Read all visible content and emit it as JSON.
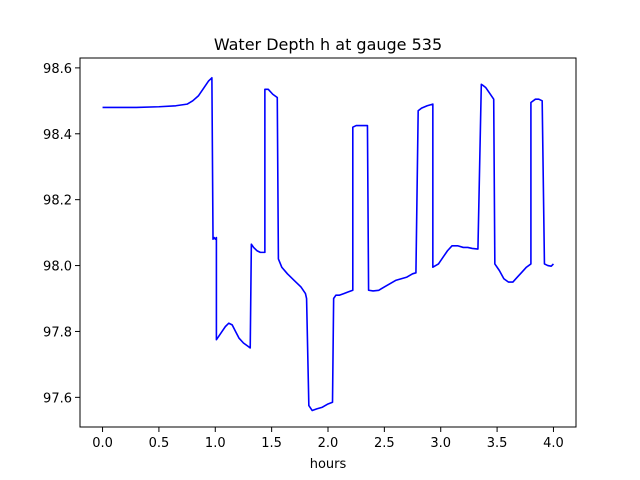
{
  "chart_data": {
    "type": "line",
    "title": "Water Depth h at gauge 535",
    "xlabel": "hours",
    "ylabel": "",
    "xlim": [
      -0.2,
      4.2
    ],
    "ylim": [
      97.51,
      98.63
    ],
    "grid": false,
    "legend": "none",
    "xticks": [
      "0.0",
      "0.5",
      "1.0",
      "1.5",
      "2.0",
      "2.5",
      "3.0",
      "3.5",
      "4.0"
    ],
    "yticks": [
      "97.6",
      "97.8",
      "98.0",
      "98.2",
      "98.4",
      "98.6"
    ],
    "series": [
      {
        "name": "",
        "color": "#0000ff",
        "x": [
          0.0,
          0.3,
          0.5,
          0.65,
          0.75,
          0.8,
          0.85,
          0.9,
          0.94,
          0.97,
          0.98,
          0.98,
          0.99,
          1.0,
          1.01,
          1.01,
          1.03,
          1.06,
          1.09,
          1.12,
          1.15,
          1.18,
          1.21,
          1.25,
          1.29,
          1.31,
          1.32,
          1.34,
          1.37,
          1.4,
          1.44,
          1.44,
          1.47,
          1.51,
          1.55,
          1.56,
          1.59,
          1.64,
          1.7,
          1.76,
          1.8,
          1.81,
          1.83,
          1.86,
          1.9,
          1.95,
          2.0,
          2.04,
          2.05,
          2.07,
          2.1,
          2.14,
          2.18,
          2.22,
          2.22,
          2.25,
          2.3,
          2.35,
          2.36,
          2.4,
          2.45,
          2.5,
          2.55,
          2.6,
          2.65,
          2.7,
          2.75,
          2.78,
          2.8,
          2.83,
          2.88,
          2.93,
          2.93,
          2.98,
          3.02,
          3.06,
          3.1,
          3.15,
          3.2,
          3.24,
          3.28,
          3.33,
          3.36,
          3.37,
          3.4,
          3.43,
          3.47,
          3.48,
          3.52,
          3.56,
          3.6,
          3.64,
          3.68,
          3.72,
          3.76,
          3.8,
          3.8,
          3.84,
          3.87,
          3.9,
          3.92,
          3.95,
          3.98,
          4.0
        ],
        "y": [
          98.48,
          98.48,
          98.482,
          98.485,
          98.49,
          98.5,
          98.515,
          98.54,
          98.56,
          98.57,
          98.08,
          98.08,
          98.085,
          98.08,
          98.085,
          97.775,
          97.785,
          97.8,
          97.815,
          97.825,
          97.82,
          97.8,
          97.78,
          97.765,
          97.755,
          97.75,
          98.065,
          98.055,
          98.045,
          98.04,
          98.04,
          98.535,
          98.535,
          98.52,
          98.51,
          98.02,
          97.995,
          97.975,
          97.955,
          97.935,
          97.915,
          97.9,
          97.575,
          97.56,
          97.565,
          97.57,
          97.58,
          97.585,
          97.9,
          97.91,
          97.91,
          97.915,
          97.92,
          97.925,
          98.42,
          98.425,
          98.425,
          98.425,
          97.925,
          97.923,
          97.925,
          97.935,
          97.945,
          97.955,
          97.96,
          97.965,
          97.975,
          97.978,
          98.47,
          98.478,
          98.485,
          98.49,
          97.995,
          98.005,
          98.025,
          98.045,
          98.06,
          98.06,
          98.055,
          98.055,
          98.052,
          98.05,
          98.55,
          98.548,
          98.54,
          98.525,
          98.505,
          98.005,
          97.985,
          97.96,
          97.95,
          97.95,
          97.965,
          97.98,
          97.995,
          98.005,
          98.495,
          98.505,
          98.505,
          98.5,
          98.005,
          98.0,
          97.998,
          98.005
        ]
      }
    ]
  }
}
